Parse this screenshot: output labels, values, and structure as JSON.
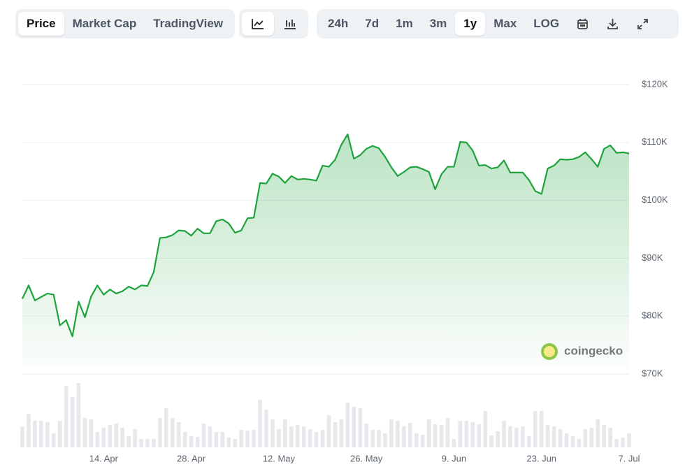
{
  "toolbar": {
    "views": [
      "Price",
      "Market Cap",
      "TradingView"
    ],
    "selected_view": 0,
    "ranges": [
      "24h",
      "7d",
      "1m",
      "3m",
      "1y",
      "Max",
      "LOG"
    ],
    "selected_range": 4
  },
  "watermark": "coingecko",
  "chart_data": {
    "type": "line",
    "categories": [
      null,
      null,
      null,
      null,
      null,
      null,
      null,
      null,
      null,
      null,
      null,
      null,
      null,
      "14. Apr",
      null,
      null,
      null,
      null,
      null,
      null,
      null,
      null,
      null,
      null,
      null,
      null,
      null,
      "28. Apr",
      null,
      null,
      null,
      null,
      null,
      null,
      null,
      null,
      null,
      null,
      null,
      null,
      null,
      "12. May",
      null,
      null,
      null,
      null,
      null,
      null,
      null,
      null,
      null,
      null,
      null,
      null,
      null,
      "26. May",
      null,
      null,
      null,
      null,
      null,
      null,
      null,
      null,
      null,
      null,
      null,
      null,
      null,
      "9. Jun",
      null,
      null,
      null,
      null,
      null,
      null,
      null,
      null,
      null,
      null,
      null,
      null,
      null,
      "23. Jun",
      null,
      null,
      null,
      null,
      null,
      null,
      null,
      null,
      null,
      null,
      null,
      null,
      null,
      "7. Jul"
    ],
    "series": [
      {
        "color": "#1ea33c",
        "values": [
          83000,
          85300,
          82700,
          83300,
          83900,
          83700,
          78400,
          79300,
          76500,
          82500,
          79800,
          83400,
          85300,
          83700,
          84600,
          83900,
          84300,
          85100,
          84600,
          85300,
          85200,
          87600,
          93500,
          93600,
          94000,
          94800,
          94700,
          93900,
          95100,
          94300,
          94300,
          96400,
          96700,
          96000,
          94400,
          94800,
          96900,
          97000,
          103000,
          102900,
          104600,
          104100,
          103000,
          104200,
          103600,
          103700,
          103600,
          103400,
          106000,
          105800,
          107000,
          109600,
          111400,
          107200,
          107800,
          108900,
          109400,
          109000,
          107500,
          105700,
          104200,
          104900,
          105700,
          105800,
          105400,
          104900,
          101900,
          104500,
          105800,
          105800,
          110100,
          110000,
          108600,
          106000,
          106100,
          105500,
          105700,
          106900,
          104800,
          104800,
          104800,
          103500,
          101600,
          101100,
          105500,
          106000,
          107100,
          107000,
          107100,
          107500,
          108300,
          107100,
          105800,
          108900,
          109500,
          108200,
          108300,
          108100
        ]
      },
      {
        "type": "bar",
        "axis": "y2",
        "color": "#e6e8eb",
        "values": [
          30,
          48,
          38,
          38,
          36,
          20,
          38,
          88,
          72,
          92,
          42,
          40,
          22,
          28,
          32,
          34,
          28,
          16,
          26,
          12,
          12,
          12,
          42,
          56,
          42,
          36,
          22,
          16,
          15,
          34,
          30,
          22,
          22,
          14,
          12,
          25,
          24,
          25,
          68,
          54,
          40,
          26,
          40,
          30,
          32,
          30,
          26,
          22,
          25,
          46,
          36,
          40,
          64,
          58,
          56,
          34,
          25,
          25,
          20,
          40,
          38,
          30,
          35,
          20,
          18,
          40,
          33,
          32,
          42,
          12,
          38,
          38,
          36,
          33,
          52,
          17,
          23,
          38,
          30,
          28,
          30,
          16,
          52,
          52,
          32,
          30,
          26,
          20,
          16,
          12,
          26,
          28,
          40,
          32,
          28,
          12,
          14,
          20
        ]
      }
    ],
    "ylim": [
      70000,
      120000
    ],
    "yticks": [
      {
        "value": 120000,
        "label": "$120K"
      },
      {
        "value": 110000,
        "label": "$110K"
      },
      {
        "value": 100000,
        "label": "$100K"
      },
      {
        "value": 90000,
        "label": "$90K"
      },
      {
        "value": 80000,
        "label": "$80K"
      },
      {
        "value": 70000,
        "label": "$70K"
      }
    ],
    "y2lim": [
      0,
      100
    ],
    "grid": true
  }
}
